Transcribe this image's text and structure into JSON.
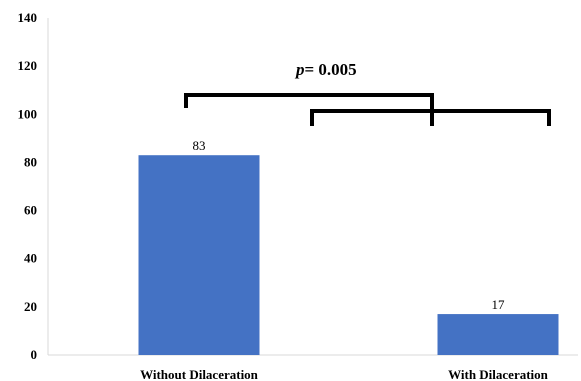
{
  "chart_data": {
    "type": "bar",
    "categories": [
      "Without  Dilaceration",
      "With Dilaceration"
    ],
    "values": [
      83,
      17
    ],
    "data_labels": [
      "83",
      "17"
    ],
    "ylim": [
      0,
      140
    ],
    "yticks": [
      0,
      20,
      40,
      60,
      80,
      100,
      120,
      140
    ],
    "ytick_labels": [
      "0",
      "20",
      "40",
      "60",
      "80",
      "100",
      "120",
      "140"
    ],
    "bar_color": "#4472C4",
    "grid": false,
    "title": "",
    "xlabel": "",
    "ylabel": "",
    "annotation": {
      "p_symbol": "p",
      "p_text": "= 0.005",
      "brackets": [
        {
          "y": 108,
          "from": 0,
          "to": "bracket_1"
        },
        {
          "y": 102,
          "from": "bracket_0_mid",
          "to": 1
        }
      ]
    }
  }
}
